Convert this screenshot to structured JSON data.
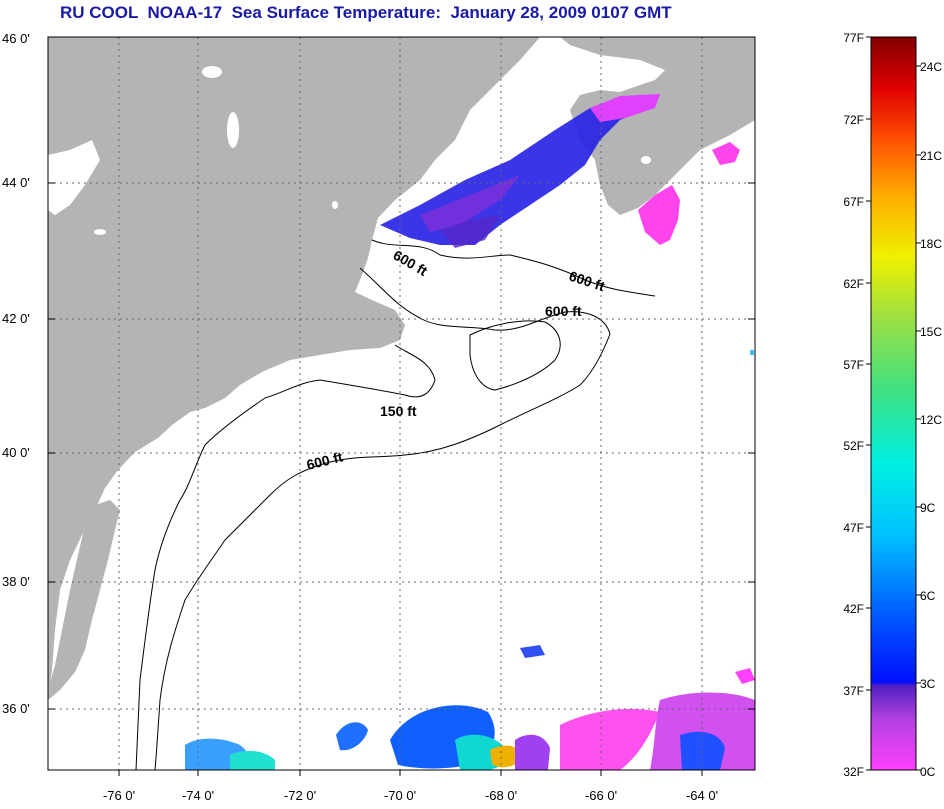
{
  "title": "RU COOL  NOAA-17  Sea Surface Temperature:  January 28, 2009 0107 GMT",
  "lat_labels": [
    "46 0'",
    "44 0'",
    "42 0'",
    "40 0'",
    "38 0'",
    "36 0'"
  ],
  "lon_labels": [
    "-76 0'",
    "-74 0'",
    "-72 0'",
    "-70 0'",
    "-68 0'",
    "-66 0'",
    "-64 0'"
  ],
  "contour_labels": [
    "600 ft",
    "600 ft",
    "600 ft",
    "150 ft",
    "600 ft"
  ],
  "colorbar": {
    "fahrenheit": [
      "77F",
      "72F",
      "67F",
      "62F",
      "57F",
      "52F",
      "47F",
      "42F",
      "37F",
      "32F"
    ],
    "celsius": [
      "24C",
      "21C",
      "18C",
      "15C",
      "12C",
      "9C",
      "6C",
      "3C",
      "0C"
    ]
  },
  "colors": {
    "land": "#b4b4b4",
    "ocean": "#ffffff",
    "title": "#1a1aa8"
  }
}
